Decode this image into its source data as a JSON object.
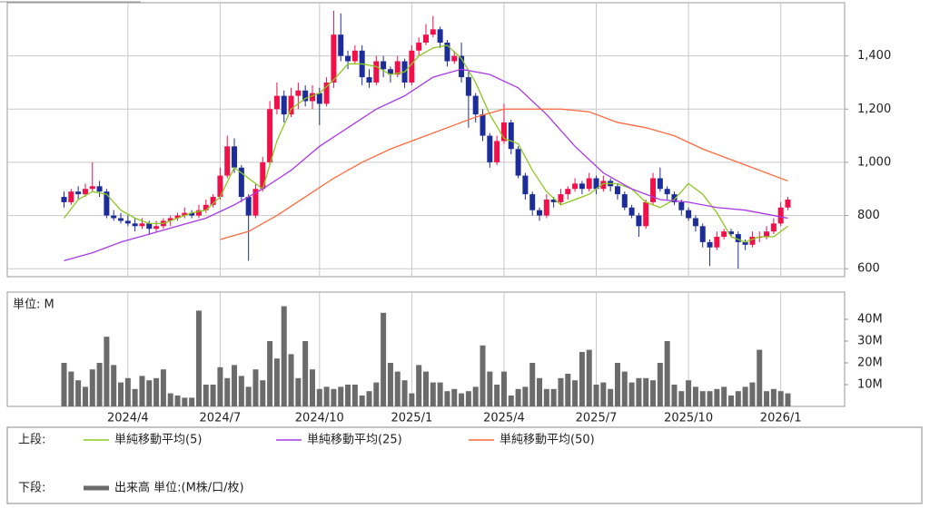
{
  "chart_data": [
    {
      "type": "candlestick",
      "legend_label": "上段:",
      "up_color": "#f0104a",
      "down_color": "#1c2d9a",
      "ylim": [
        570,
        1600
      ],
      "yticks": [
        600,
        800,
        {
          "value": 1000,
          "label": "1,000"
        },
        {
          "value": 1200,
          "label": "1,200"
        },
        {
          "value": 1400,
          "label": "1,400"
        }
      ],
      "grid": true,
      "ohlc": [
        [
          870,
          890,
          830,
          850
        ],
        [
          850,
          900,
          840,
          890
        ],
        [
          890,
          910,
          860,
          880
        ],
        [
          880,
          920,
          870,
          900
        ],
        [
          900,
          1000,
          890,
          910
        ],
        [
          910,
          930,
          870,
          890
        ],
        [
          890,
          900,
          790,
          800
        ],
        [
          800,
          820,
          780,
          790
        ],
        [
          790,
          810,
          770,
          780
        ],
        [
          780,
          800,
          760,
          770
        ],
        [
          770,
          790,
          740,
          760
        ],
        [
          760,
          790,
          750,
          770
        ],
        [
          770,
          780,
          730,
          750
        ],
        [
          750,
          780,
          740,
          760
        ],
        [
          760,
          790,
          750,
          780
        ],
        [
          780,
          800,
          760,
          790
        ],
        [
          790,
          810,
          780,
          800
        ],
        [
          800,
          830,
          790,
          810
        ],
        [
          810,
          820,
          790,
          800
        ],
        [
          800,
          840,
          790,
          820
        ],
        [
          820,
          860,
          810,
          840
        ],
        [
          840,
          880,
          830,
          870
        ],
        [
          870,
          980,
          860,
          950
        ],
        [
          950,
          1100,
          940,
          1060
        ],
        [
          1060,
          1090,
          960,
          980
        ],
        [
          980,
          990,
          850,
          870
        ],
        [
          870,
          880,
          630,
          800
        ],
        [
          800,
          920,
          790,
          900
        ],
        [
          900,
          1020,
          890,
          1000
        ],
        [
          1000,
          1230,
          990,
          1200
        ],
        [
          1200,
          1300,
          1180,
          1250
        ],
        [
          1250,
          1270,
          1150,
          1180
        ],
        [
          1180,
          1280,
          1170,
          1250
        ],
        [
          1250,
          1300,
          1200,
          1270
        ],
        [
          1270,
          1290,
          1210,
          1230
        ],
        [
          1230,
          1290,
          1200,
          1260
        ],
        [
          1260,
          1280,
          1140,
          1220
        ],
        [
          1220,
          1320,
          1210,
          1300
        ],
        [
          1300,
          1570,
          1280,
          1480
        ],
        [
          1480,
          1560,
          1380,
          1400
        ],
        [
          1400,
          1420,
          1350,
          1380
        ],
        [
          1380,
          1440,
          1370,
          1420
        ],
        [
          1420,
          1440,
          1290,
          1320
        ],
        [
          1320,
          1350,
          1280,
          1300
        ],
        [
          1300,
          1400,
          1290,
          1380
        ],
        [
          1380,
          1400,
          1320,
          1350
        ],
        [
          1350,
          1360,
          1300,
          1330
        ],
        [
          1330,
          1400,
          1320,
          1380
        ],
        [
          1380,
          1390,
          1280,
          1300
        ],
        [
          1300,
          1440,
          1290,
          1420
        ],
        [
          1420,
          1470,
          1400,
          1450
        ],
        [
          1450,
          1520,
          1440,
          1480
        ],
        [
          1480,
          1550,
          1470,
          1500
        ],
        [
          1500,
          1510,
          1430,
          1450
        ],
        [
          1450,
          1460,
          1360,
          1380
        ],
        [
          1380,
          1420,
          1370,
          1400
        ],
        [
          1400,
          1450,
          1300,
          1320
        ],
        [
          1320,
          1340,
          1130,
          1250
        ],
        [
          1250,
          1260,
          1150,
          1180
        ],
        [
          1180,
          1200,
          1080,
          1100
        ],
        [
          1100,
          1110,
          980,
          1000
        ],
        [
          1000,
          1100,
          990,
          1080
        ],
        [
          1080,
          1220,
          1070,
          1150
        ],
        [
          1150,
          1160,
          1030,
          1050
        ],
        [
          1050,
          1060,
          940,
          950
        ],
        [
          950,
          960,
          860,
          880
        ],
        [
          880,
          890,
          800,
          820
        ],
        [
          820,
          830,
          780,
          800
        ],
        [
          800,
          880,
          790,
          860
        ],
        [
          860,
          870,
          830,
          850
        ],
        [
          850,
          900,
          840,
          880
        ],
        [
          880,
          910,
          860,
          900
        ],
        [
          900,
          940,
          890,
          920
        ],
        [
          920,
          930,
          880,
          900
        ],
        [
          900,
          960,
          890,
          940
        ],
        [
          940,
          950,
          880,
          900
        ],
        [
          900,
          950,
          890,
          930
        ],
        [
          930,
          940,
          890,
          910
        ],
        [
          910,
          920,
          860,
          880
        ],
        [
          880,
          890,
          820,
          830
        ],
        [
          830,
          840,
          790,
          800
        ],
        [
          800,
          810,
          720,
          760
        ],
        [
          760,
          860,
          750,
          850
        ],
        [
          850,
          960,
          840,
          940
        ],
        [
          940,
          980,
          890,
          900
        ],
        [
          900,
          910,
          860,
          880
        ],
        [
          880,
          890,
          840,
          850
        ],
        [
          850,
          860,
          800,
          820
        ],
        [
          820,
          830,
          780,
          790
        ],
        [
          790,
          800,
          740,
          760
        ],
        [
          760,
          770,
          680,
          700
        ],
        [
          700,
          710,
          610,
          680
        ],
        [
          680,
          740,
          670,
          720
        ],
        [
          720,
          750,
          710,
          740
        ],
        [
          740,
          750,
          720,
          730
        ],
        [
          730,
          740,
          600,
          700
        ],
        [
          700,
          710,
          670,
          690
        ],
        [
          690,
          740,
          680,
          720
        ],
        [
          720,
          740,
          700,
          720
        ],
        [
          720,
          760,
          710,
          740
        ],
        [
          740,
          790,
          730,
          770
        ],
        [
          770,
          850,
          760,
          830
        ],
        [
          830,
          870,
          820,
          860
        ]
      ],
      "series": [
        {
          "name": "単純移動平均(5)",
          "color": "#8cc820",
          "x": [
            0,
            2,
            4,
            6,
            8,
            10,
            12,
            14,
            16,
            18,
            20,
            22,
            24,
            26,
            28,
            30,
            32,
            34,
            36,
            38,
            40,
            42,
            44,
            46,
            48,
            50,
            52,
            54,
            56,
            58,
            60,
            62,
            64,
            66,
            68,
            70,
            72,
            74,
            76,
            78,
            80,
            82,
            84,
            86,
            88,
            90,
            92,
            94,
            96,
            98,
            100,
            102
          ],
          "values": [
            790,
            860,
            890,
            880,
            820,
            790,
            770,
            770,
            790,
            810,
            820,
            870,
            980,
            940,
            900,
            1080,
            1200,
            1240,
            1260,
            1310,
            1370,
            1370,
            1360,
            1330,
            1340,
            1400,
            1430,
            1440,
            1390,
            1300,
            1180,
            1090,
            1070,
            970,
            890,
            840,
            860,
            880,
            920,
            920,
            900,
            850,
            830,
            860,
            920,
            880,
            810,
            720,
            700,
            720,
            720,
            760
          ]
        },
        {
          "name": "単純移動平均(25)",
          "color": "#a838e8",
          "x": [
            0,
            4,
            8,
            12,
            16,
            20,
            24,
            28,
            32,
            36,
            40,
            44,
            48,
            52,
            56,
            60,
            64,
            68,
            72,
            76,
            80,
            84,
            88,
            92,
            96,
            100,
            102
          ],
          "values": [
            630,
            660,
            700,
            730,
            760,
            790,
            840,
            900,
            970,
            1060,
            1130,
            1200,
            1250,
            1320,
            1350,
            1330,
            1280,
            1180,
            1060,
            960,
            900,
            860,
            850,
            830,
            820,
            800,
            790
          ]
        },
        {
          "name": "単純移動平均(50)",
          "color": "#ff6a3c",
          "x": [
            22,
            26,
            30,
            34,
            38,
            42,
            46,
            50,
            54,
            58,
            62,
            66,
            70,
            74,
            78,
            82,
            86,
            90,
            94,
            98,
            102
          ],
          "values": [
            710,
            740,
            800,
            870,
            940,
            1000,
            1050,
            1090,
            1130,
            1170,
            1200,
            1200,
            1200,
            1190,
            1150,
            1130,
            1100,
            1050,
            1010,
            970,
            930
          ]
        }
      ]
    },
    {
      "type": "bar",
      "legend_label": "下段:",
      "unit_label": "単位: M",
      "xlim": [
        -8,
        110
      ],
      "xticks": [
        {
          "value": 9,
          "label": "2024/4"
        },
        {
          "value": 22,
          "label": "2024/7"
        },
        {
          "value": 36,
          "label": "2024/10"
        },
        {
          "value": 49,
          "label": "2025/1"
        },
        {
          "value": 62,
          "label": "2025/4"
        },
        {
          "value": 75,
          "label": "2025/7"
        },
        {
          "value": 88,
          "label": "2025/10"
        },
        {
          "value": 101,
          "label": "2026/1"
        }
      ],
      "ylim": [
        0,
        52.5
      ],
      "yticks": [
        {
          "value": 10,
          "label": "10M"
        },
        {
          "value": 20,
          "label": "20M"
        },
        {
          "value": 30,
          "label": "30M"
        },
        {
          "value": 40,
          "label": "40M"
        }
      ],
      "series": [
        {
          "name": "出来高 単位:(M株/口/枚)",
          "color": "#6b6b6b",
          "values": [
            20,
            16,
            12,
            9,
            17,
            20,
            32,
            19,
            11,
            13,
            8,
            14,
            12,
            13,
            17,
            6,
            5,
            4,
            4,
            44,
            10,
            10,
            18,
            13,
            19,
            14,
            9,
            17,
            12,
            30,
            22,
            46,
            24,
            13,
            30,
            17,
            8,
            9,
            8,
            9,
            10,
            10,
            5,
            7,
            11,
            43,
            20,
            16,
            12,
            6,
            19,
            16,
            11,
            11,
            7,
            8,
            6,
            7,
            9,
            28,
            16,
            10,
            16,
            5,
            8,
            9,
            20,
            13,
            8,
            8,
            13,
            15,
            12,
            25,
            26,
            10,
            11,
            8,
            20,
            16,
            11,
            13,
            13,
            12,
            20,
            30,
            10,
            7,
            12,
            9,
            7,
            7,
            8,
            9,
            5,
            7,
            9,
            11,
            26,
            7,
            8,
            7,
            6
          ]
        }
      ]
    }
  ]
}
